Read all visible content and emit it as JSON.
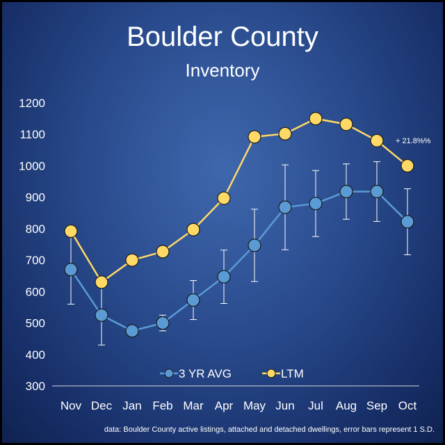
{
  "chart_data": {
    "type": "line",
    "title": "Boulder County",
    "subtitle": "Inventory",
    "categories": [
      "Nov",
      "Dec",
      "Jan",
      "Feb",
      "Mar",
      "Apr",
      "May",
      "Jun",
      "Jul",
      "Aug",
      "Sep",
      "Oct"
    ],
    "yticks": [
      "300",
      "400",
      "500",
      "600",
      "700",
      "800",
      "900",
      "1000",
      "1100",
      "1200"
    ],
    "ylim": [
      300,
      1200
    ],
    "grid": false,
    "legend_position": "bottom",
    "series": [
      {
        "name": "3 YR AVG",
        "color": "#5b9bd5",
        "values": [
          670,
          525,
          475,
          500,
          573,
          647,
          747,
          868,
          880,
          918,
          918,
          822
        ],
        "error": [
          110,
          95,
          10,
          25,
          62,
          85,
          115,
          135,
          105,
          88,
          95,
          105
        ]
      },
      {
        "name": "LTM",
        "color": "#ffd966",
        "values": [
          792,
          630,
          700,
          727,
          797,
          897,
          1092,
          1102,
          1150,
          1132,
          1080,
          1000
        ]
      }
    ],
    "annotation": {
      "text": "+ 21.8%%",
      "color": "#ffffff"
    },
    "footnote": "data: Boulder County active listings, attached and detached dwellings, error bars represent 1 S.D."
  }
}
